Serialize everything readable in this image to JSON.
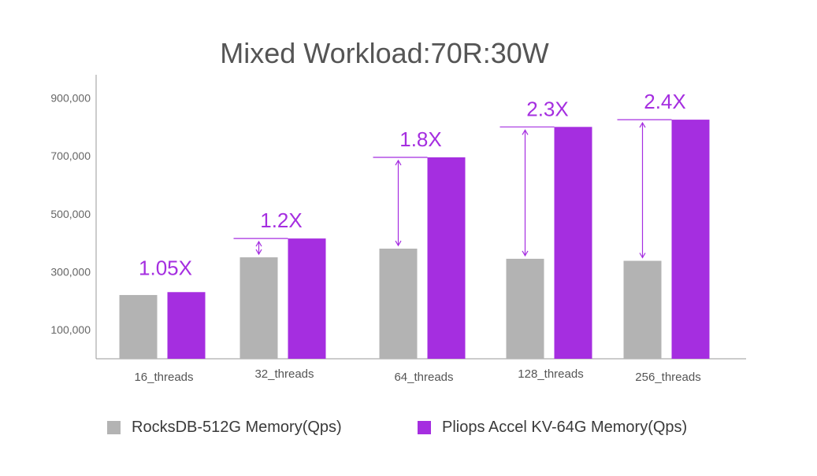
{
  "chart_data": {
    "type": "bar",
    "title": "Mixed Workload:70R:30W",
    "categories": [
      "16_threads",
      "32_threads",
      "64_threads",
      "128_threads",
      "256_threads"
    ],
    "series": [
      {
        "name": "RocksDB-512G Memory(Qps)",
        "color": "#b3b3b3",
        "values": [
          220000,
          350000,
          380000,
          345000,
          338000
        ]
      },
      {
        "name": "Pliops Accel KV-64G Memory(Qps)",
        "color": "#a52ee0",
        "values": [
          230000,
          415000,
          695000,
          800000,
          825000
        ]
      }
    ],
    "annotations": [
      "1.05X",
      "1.2X",
      "1.8X",
      "2.3X",
      "2.4X"
    ],
    "yticks": [
      {
        "value": 100000,
        "label": "100,000"
      },
      {
        "value": 300000,
        "label": "300,000"
      },
      {
        "value": 500000,
        "label": "500,000"
      },
      {
        "value": 700000,
        "label": "700,000"
      },
      {
        "value": 900000,
        "label": "900,000"
      }
    ],
    "ylim": [
      0,
      980000
    ],
    "xlabel": "",
    "ylabel": "",
    "grid": false,
    "legend_position": "bottom",
    "annotation_color": "#a52ee0"
  }
}
